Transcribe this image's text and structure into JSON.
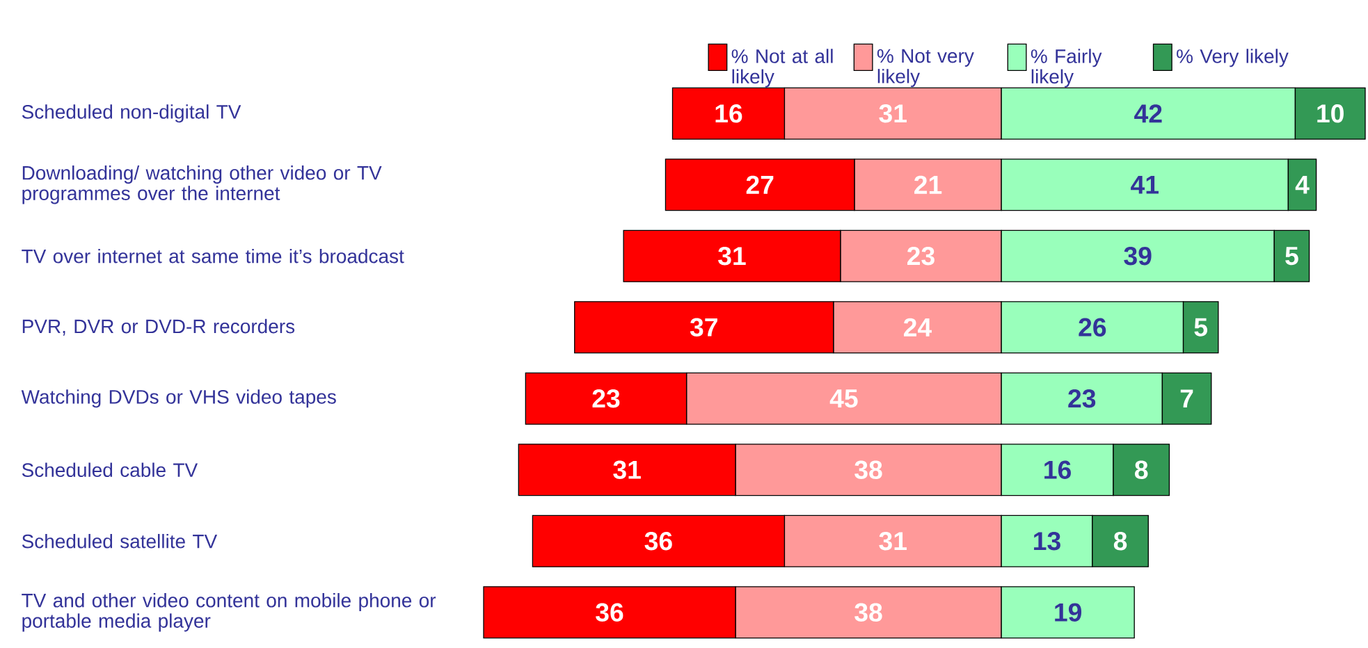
{
  "chart_data": [
    {
      "type": "bar",
      "orientation": "horizontal",
      "stacked": true,
      "data_labels": true,
      "legend": "top right",
      "tick_labels": "y",
      "xlim": [
        74.5,
        0
      ],
      "categories": [
        "Scheduled non-digital TV",
        "Downloading/ watching other video or TV programmes over the internet",
        "TV over internet at same time it’s broadcast",
        "PVR, DVR or DVD-R recorders",
        "Watching DVDs or VHS video tapes",
        "Scheduled cable TV",
        "Scheduled satellite TV",
        "TV and other video content on mobile phone or portable media player"
      ],
      "series": [
        {
          "name": "% Not very likely",
          "color": "#ff9999",
          "values": [
            31,
            21,
            23,
            24,
            45,
            38,
            31,
            38
          ]
        },
        {
          "name": "% Not at all likely",
          "color": "#ff0000",
          "values": [
            16,
            27,
            31,
            37,
            23,
            31,
            36,
            36
          ]
        }
      ]
    },
    {
      "type": "bar",
      "orientation": "horizontal",
      "stacked": true,
      "data_labels": true,
      "legend": "top left",
      "tick_labels": false,
      "xlim": [
        0,
        52
      ],
      "categories": [
        null,
        null,
        null,
        null,
        null,
        null,
        null,
        null
      ],
      "series": [
        {
          "name": "% Fairly likely",
          "color": "#99ffbb",
          "values": [
            42,
            41,
            39,
            26,
            23,
            16,
            13,
            19
          ]
        },
        {
          "name": "% Very likely",
          "color": "#339955",
          "values": [
            10,
            4,
            5,
            5,
            7,
            8,
            8,
            null
          ]
        }
      ]
    }
  ]
}
